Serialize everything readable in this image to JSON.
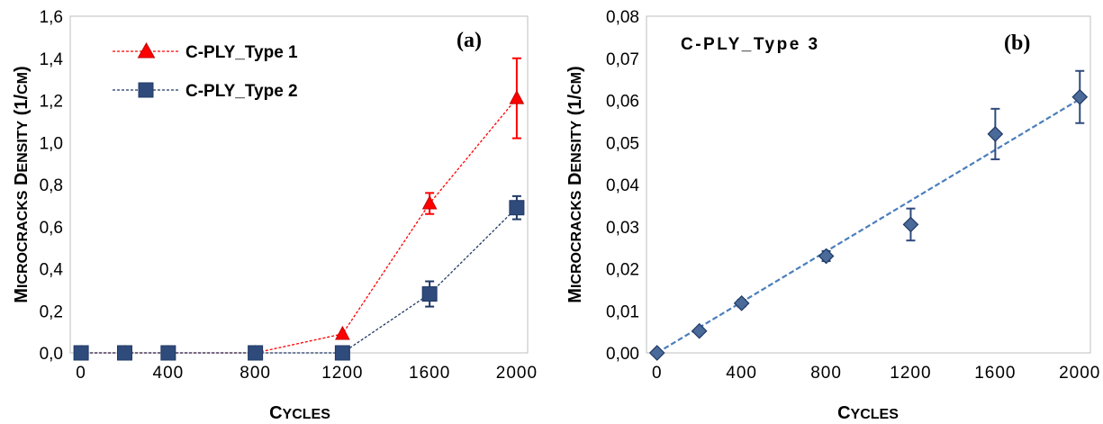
{
  "chart_data": [
    {
      "type": "line",
      "panel_label": "(a)",
      "xlabel": "Cycles",
      "ylabel": "Microcracks Density (1/cm)",
      "xlim": [
        -50,
        2050
      ],
      "ylim": [
        0,
        1.6
      ],
      "xticks": [
        "0",
        "400",
        "800",
        "1200",
        "1600",
        "2000"
      ],
      "xtick_values": [
        0,
        400,
        800,
        1200,
        1600,
        2000
      ],
      "yticks": [
        "0,0",
        "0,2",
        "0,4",
        "0,6",
        "0,8",
        "1,0",
        "1,2",
        "1,4",
        "1,6"
      ],
      "ytick_values": [
        0,
        0.2,
        0.4,
        0.6,
        0.8,
        1.0,
        1.2,
        1.4,
        1.6
      ],
      "grid": false,
      "legend_position": "top-left",
      "series": [
        {
          "name": "C-PLY_Type 1",
          "color": "#ff0000",
          "marker": "triangle",
          "x": [
            0,
            200,
            400,
            800,
            1200,
            1600,
            2000
          ],
          "y": [
            0,
            0,
            0,
            0,
            0.09,
            0.71,
            1.21
          ],
          "err": [
            0,
            0,
            0,
            0,
            0,
            0.05,
            0.19
          ]
        },
        {
          "name": "C-PLY_Type 2",
          "color": "#1f3864",
          "marker": "square",
          "x": [
            0,
            200,
            400,
            800,
            1200,
            1600,
            2000
          ],
          "y": [
            0,
            0,
            0,
            0,
            0,
            0.28,
            0.69
          ],
          "err": [
            0,
            0,
            0,
            0,
            0,
            0.06,
            0.055
          ]
        }
      ]
    },
    {
      "type": "scatter",
      "panel_label": "(b)",
      "title": "C-PLY_Type 3",
      "xlabel": "Cycles",
      "ylabel": "Microcracks Density (1/cm)",
      "xlim": [
        -50,
        2050
      ],
      "ylim": [
        0,
        0.08
      ],
      "xticks": [
        "0",
        "400",
        "800",
        "1200",
        "1600",
        "2000"
      ],
      "xtick_values": [
        0,
        400,
        800,
        1200,
        1600,
        2000
      ],
      "yticks": [
        "0,00",
        "0,01",
        "0,02",
        "0,03",
        "0,04",
        "0,05",
        "0,06",
        "0,07",
        "0,08"
      ],
      "ytick_values": [
        0,
        0.01,
        0.02,
        0.03,
        0.04,
        0.05,
        0.06,
        0.07,
        0.08
      ],
      "grid": false,
      "series": [
        {
          "name": "C-PLY_Type 3",
          "color": "#2f4b7c",
          "marker": "diamond",
          "x": [
            0,
            200,
            400,
            800,
            1200,
            1600,
            2000
          ],
          "y": [
            0,
            0.0052,
            0.0118,
            0.023,
            0.0305,
            0.052,
            0.0608
          ],
          "err": [
            0,
            0.0005,
            0.0008,
            0.0012,
            0.0038,
            0.006,
            0.0062
          ]
        }
      ],
      "trendline": {
        "type": "linear",
        "color": "#4a7ebb",
        "x": [
          0,
          2000
        ],
        "y": [
          0,
          0.0603
        ]
      }
    }
  ]
}
